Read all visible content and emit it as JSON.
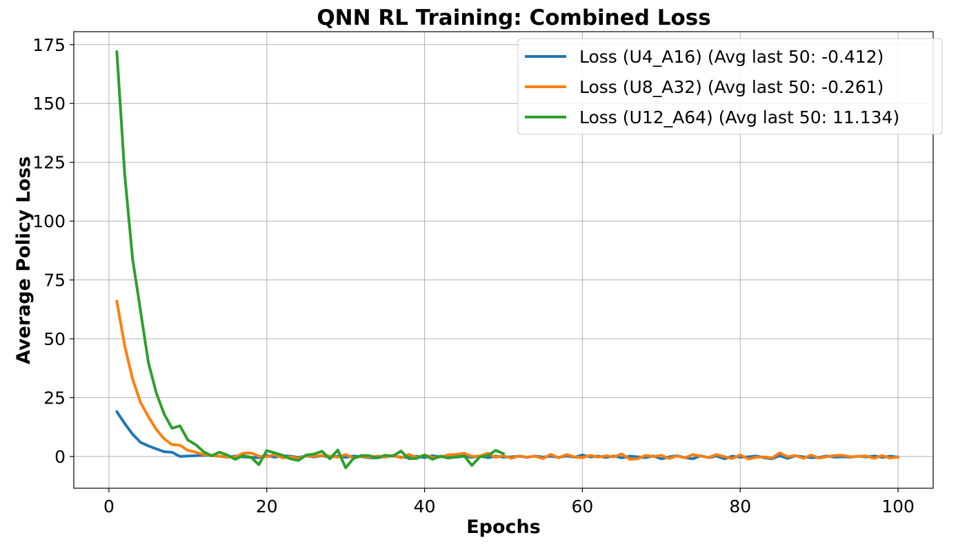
{
  "chart_data": {
    "type": "line",
    "title": "QNN RL Training: Combined Loss",
    "xlabel": "Epochs",
    "ylabel": "Average Policy Loss",
    "xlim": [
      -4.45,
      104.45
    ],
    "ylim": [
      -13.5,
      180.5
    ],
    "xticks": [
      0,
      20,
      40,
      60,
      80,
      100
    ],
    "yticks": [
      0,
      25,
      50,
      75,
      100,
      125,
      150,
      175
    ],
    "grid": true,
    "legend_position": "top-right",
    "series": [
      {
        "name": "Loss (U4_A16) (Avg last 50: -0.412)",
        "color": "#1f77b4",
        "x": [
          1,
          2,
          3,
          4,
          5,
          6,
          7,
          8,
          9,
          10,
          11,
          12,
          13,
          14,
          15,
          16,
          17,
          18,
          19,
          20,
          21,
          22,
          23,
          24,
          25,
          26,
          27,
          28,
          29,
          30,
          31,
          32,
          33,
          34,
          35,
          36,
          37,
          38,
          39,
          40,
          41,
          42,
          43,
          44,
          45,
          46,
          47,
          48,
          49,
          50,
          51,
          52,
          53,
          54,
          55,
          56,
          57,
          58,
          59,
          60,
          61,
          62,
          63,
          64,
          65,
          66,
          67,
          68,
          69,
          70,
          71,
          72,
          73,
          74,
          75,
          76,
          77,
          78,
          79,
          80,
          81,
          82,
          83,
          84,
          85,
          86,
          87,
          88,
          89,
          90,
          91,
          92,
          93,
          94,
          95,
          96,
          97,
          98,
          99,
          100
        ],
        "y": [
          19,
          14,
          9.5,
          6,
          4.5,
          3.2,
          2,
          1.8,
          0,
          0.2,
          0.3,
          0.5,
          0.3,
          0.1,
          -0.3,
          0.1,
          -0.2,
          -0.4,
          -0.5,
          0.4,
          -0.3,
          0.3,
          0.1,
          -0.4,
          0.2,
          -0.2,
          0.3,
          -0.3,
          0.1,
          -0.4,
          0.2,
          -0.1,
          -0.6,
          -0.6,
          0,
          0.2,
          -0.3,
          -0.4,
          0.1,
          -0.5,
          0.3,
          -0.2,
          -0.1,
          -0.3,
          0.1,
          -0.4,
          0.2,
          -0.5,
          0.1,
          -0.3,
          -0.2,
          0.1,
          -0.4,
          0.2,
          -0.3,
          0.1,
          -0.4,
          0.2,
          -0.3,
          0.6,
          -0.2,
          0.1,
          -0.4,
          0.2,
          -0.6,
          0.1,
          -0.2,
          -0.5,
          0.2,
          -1,
          -0.2,
          0.3,
          -0.5,
          -1,
          0.3,
          -0.5,
          0.2,
          -1,
          0.1,
          -0.3,
          -0.2,
          0.2,
          -0.5,
          -1,
          0.3,
          -0.8,
          0.3,
          -0.2,
          -0.5,
          -0.4,
          0.2,
          -0.3,
          -0.1,
          -0.3,
          0.1,
          -0.2,
          0.2,
          -0.4,
          0.1,
          -0.3
        ]
      },
      {
        "name": "Loss (U8_A32) (Avg last 50: -0.261)",
        "color": "#ff7f0e",
        "x": [
          1,
          2,
          3,
          4,
          5,
          6,
          7,
          8,
          9,
          10,
          11,
          12,
          13,
          14,
          15,
          16,
          17,
          18,
          19,
          20,
          21,
          22,
          23,
          24,
          25,
          26,
          27,
          28,
          29,
          30,
          31,
          32,
          33,
          34,
          35,
          36,
          37,
          38,
          39,
          40,
          41,
          42,
          43,
          44,
          45,
          46,
          47,
          48,
          49,
          50,
          51,
          52,
          53,
          54,
          55,
          56,
          57,
          58,
          59,
          60,
          61,
          62,
          63,
          64,
          65,
          66,
          67,
          68,
          69,
          70,
          71,
          72,
          73,
          74,
          75,
          76,
          77,
          78,
          79,
          80,
          81,
          82,
          83,
          84,
          85,
          86,
          87,
          88,
          89,
          90,
          91,
          92,
          93,
          94,
          95,
          96,
          97,
          98,
          99,
          100
        ],
        "y": [
          66,
          47,
          33,
          23,
          17,
          11.5,
          7.5,
          5,
          4.8,
          2.6,
          1.8,
          0.8,
          0.4,
          0.1,
          -0.2,
          -0.3,
          1.4,
          1.5,
          0.1,
          -0.2,
          0.8,
          -0.6,
          -0.2,
          -0.8,
          0.3,
          0.1,
          0.5,
          0.1,
          -0.3,
          0.8,
          -0.7,
          0.1,
          -0.4,
          0.2,
          -0.3,
          0.5,
          -0.6,
          0.9,
          -0.5,
          0.6,
          -0.4,
          -0.3,
          0.7,
          0.8,
          1.4,
          0,
          0.2,
          1.4,
          -0.4,
          0.3,
          -0.8,
          0.2,
          -0.3,
          0.1,
          -0.9,
          0.9,
          -0.6,
          0.8,
          -0.2,
          -0.5,
          0.5,
          -0.3,
          0.3,
          -0.2,
          1.1,
          -1.2,
          -1,
          0.5,
          -0.1,
          0.5,
          -0.9,
          0.2,
          -0.6,
          0.8,
          0.1,
          -0.4,
          0.8,
          -0.1,
          -0.9,
          0.7,
          -1.1,
          -0.4,
          -0.2,
          -0.7,
          1.5,
          -0.1,
          0.4,
          -0.8,
          0.6,
          -0.7,
          -0.1,
          0.4,
          0.5,
          -0.2,
          0.1,
          0.2,
          -0.8,
          0.4,
          -0.7,
          -0.2
        ]
      },
      {
        "name": "Loss (U12_A64) (Avg last 50: 11.134)",
        "color": "#2ca02c",
        "x": [
          1,
          2,
          3,
          4,
          5,
          6,
          7,
          8,
          9,
          10,
          11,
          12,
          13,
          14,
          15,
          16,
          17,
          18,
          19,
          20,
          21,
          22,
          23,
          24,
          25,
          26,
          27,
          28,
          29,
          30,
          31,
          32,
          33,
          34,
          35,
          36,
          37,
          38,
          39,
          40,
          41,
          42,
          43,
          44,
          45,
          46,
          47,
          48,
          49,
          50
        ],
        "y": [
          172,
          120,
          84,
          62,
          40,
          27,
          18,
          12,
          13,
          7,
          5,
          2,
          0.3,
          1.8,
          0.6,
          -1.2,
          0.3,
          -0.3,
          -3.5,
          2.5,
          1.5,
          0.5,
          -1,
          -1.7,
          0.6,
          1,
          2.2,
          -1,
          2.7,
          -4.8,
          -0.8,
          0.4,
          0.3,
          -0.6,
          0.5,
          0.2,
          2.3,
          -1,
          -0.8,
          0.6,
          -1.2,
          0.2,
          -0.7,
          -0.2,
          0.3,
          -3.8,
          -0.2,
          0.3,
          2.6,
          1.2
        ]
      }
    ]
  }
}
